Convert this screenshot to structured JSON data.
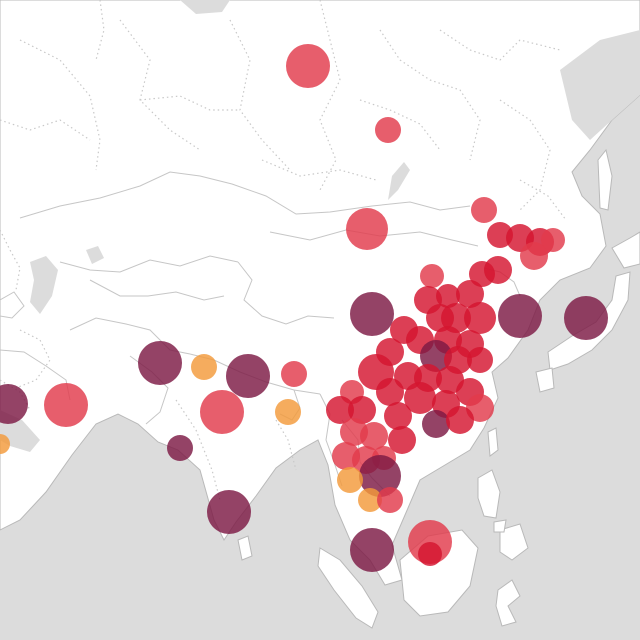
{
  "map": {
    "region": "Asia",
    "sea_color": "#dcdcdc",
    "land_color": "#ffffff",
    "border_color": "#c6c6c6",
    "marker_opacity": 0.82,
    "categories": {
      "orange": "#f39a3a",
      "red": "#e23a4c",
      "crimson": "#d4152f",
      "maroon": "#7d1a44"
    }
  }
}
